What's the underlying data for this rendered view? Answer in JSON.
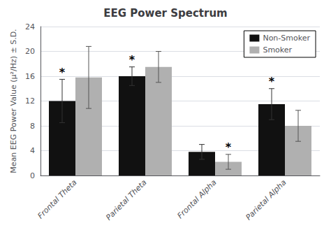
{
  "chart_data": {
    "type": "bar",
    "title": "EEG Power Spectrum",
    "y_label": "Mean EEG Power Value (μ²/Hz) ± S.D.",
    "categories": [
      "Frontal Theta",
      "Parietal Theta",
      "Frontal Alpha",
      "Parietal Alpha"
    ],
    "series": [
      {
        "name": "Non-Smoker",
        "color": "#111111",
        "values": [
          12.0,
          16.0,
          3.8,
          11.5
        ],
        "errors": [
          3.5,
          1.5,
          1.2,
          2.5
        ]
      },
      {
        "name": "Smoker",
        "color": "#b0b0b0",
        "values": [
          15.8,
          17.5,
          2.2,
          8.0
        ],
        "errors": [
          5.0,
          2.5,
          1.2,
          2.5
        ]
      }
    ],
    "ylim": [
      0,
      24
    ],
    "yticks": [
      0,
      4,
      8,
      12,
      16,
      20,
      24
    ],
    "grid": true,
    "legend": "upper right",
    "annotations": [
      {
        "text": "*",
        "category": "Frontal Theta",
        "series": "Non-Smoker"
      },
      {
        "text": "*",
        "category": "Parietal Theta",
        "series": "Non-Smoker"
      },
      {
        "text": "*",
        "category": "Frontal Alpha",
        "series": "Smoker"
      },
      {
        "text": "*",
        "category": "Parietal Alpha",
        "series": "Non-Smoker"
      }
    ]
  }
}
